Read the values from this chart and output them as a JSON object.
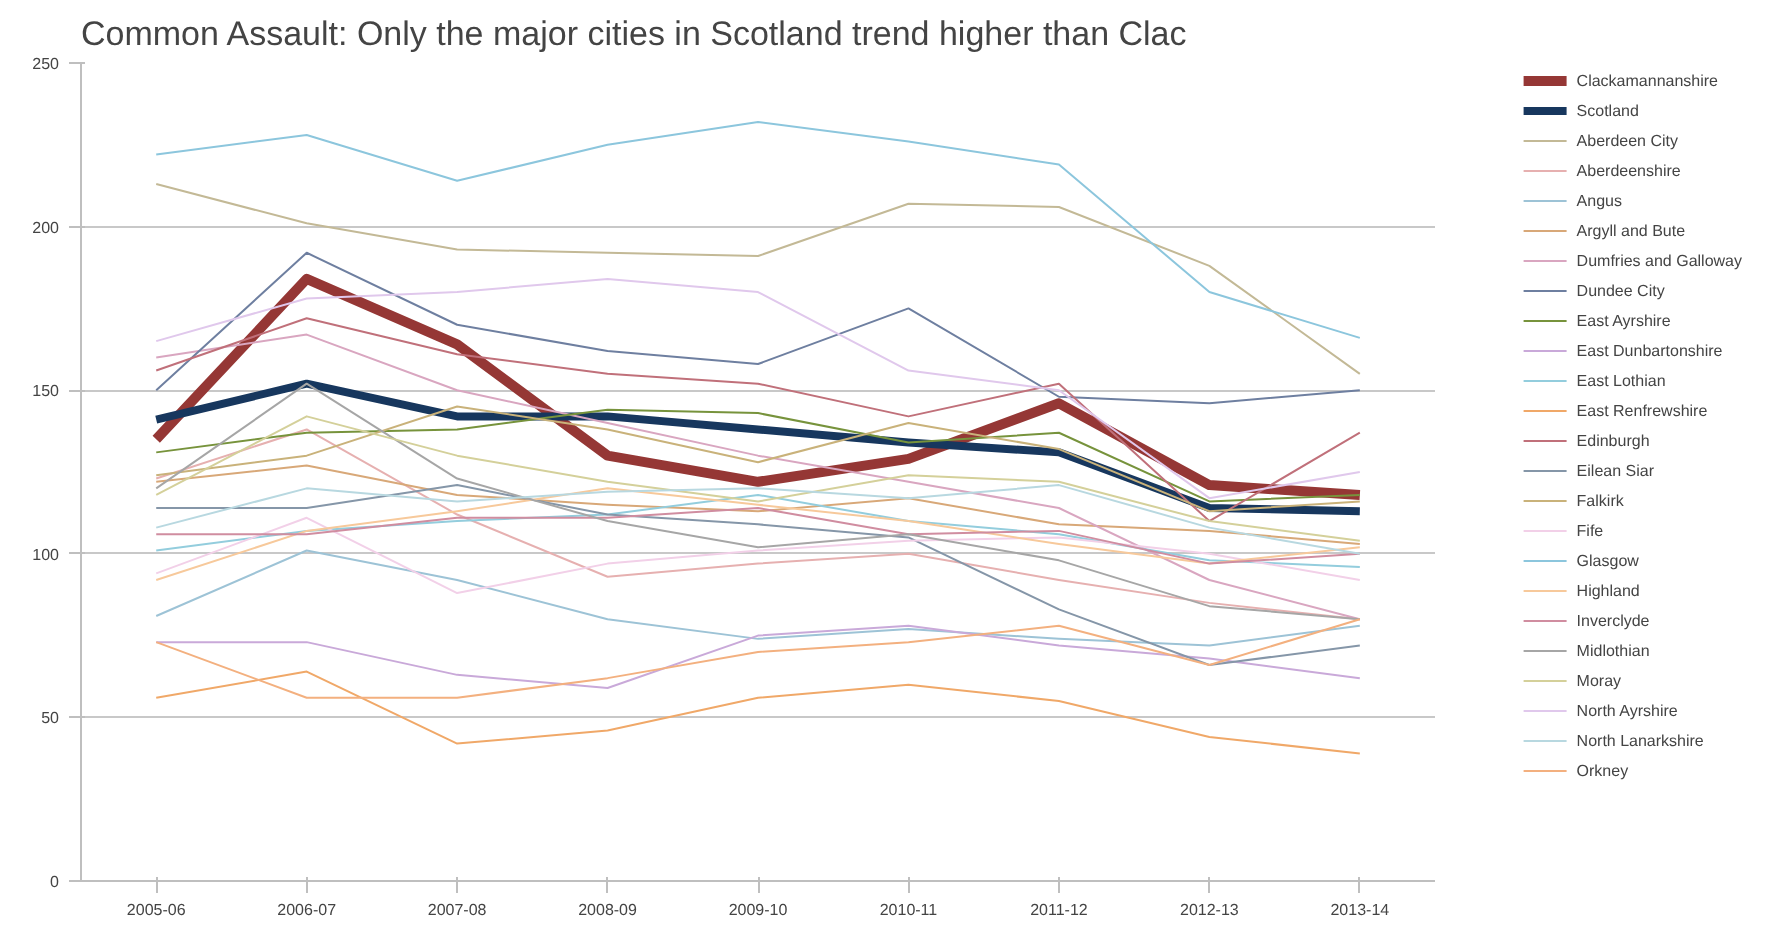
{
  "chart_data": {
    "type": "line",
    "title": "Common Assault: Only the major cities in Scotland trend higher than Clac",
    "categories": [
      "2005-06",
      "2006-07",
      "2007-08",
      "2008-09",
      "2009-10",
      "2010-11",
      "2011-12",
      "2012-13",
      "2013-14"
    ],
    "ylim": [
      0,
      250
    ],
    "yticks": [
      0,
      50,
      100,
      150,
      200,
      250
    ],
    "grid": "y",
    "legend": "right",
    "series": [
      {
        "name": "Clackamannanshire",
        "color": "#953735",
        "values": [
          135,
          184,
          164,
          130,
          122,
          129,
          146,
          121,
          118
        ]
      },
      {
        "name": "Scotland",
        "color": "#17375e",
        "values": [
          141,
          152,
          142,
          142,
          138,
          134,
          131,
          114,
          113
        ]
      },
      {
        "name": "Aberdeen City",
        "color": "#c3b996",
        "values": [
          213,
          201,
          193,
          192,
          191,
          207,
          206,
          188,
          155
        ]
      },
      {
        "name": "Aberdeenshire",
        "color": "#e6b0b0",
        "values": [
          123,
          138,
          112,
          93,
          97,
          100,
          92,
          85,
          80
        ]
      },
      {
        "name": "Angus",
        "color": "#9dc3d6",
        "values": [
          81,
          101,
          92,
          80,
          74,
          77,
          74,
          72,
          78
        ]
      },
      {
        "name": "Argyll and Bute",
        "color": "#d8a878",
        "values": [
          122,
          127,
          118,
          115,
          113,
          117,
          109,
          107,
          103
        ]
      },
      {
        "name": "Dumfries and Galloway",
        "color": "#d9a6c0",
        "values": [
          160,
          167,
          150,
          140,
          130,
          122,
          114,
          92,
          80
        ]
      },
      {
        "name": "Dundee City",
        "color": "#6e7fa0",
        "values": [
          150,
          192,
          170,
          162,
          158,
          175,
          148,
          146,
          150
        ]
      },
      {
        "name": "East Ayrshire",
        "color": "#77933c",
        "values": [
          131,
          137,
          138,
          144,
          143,
          134,
          137,
          116,
          118
        ]
      },
      {
        "name": "East Dunbartonshire",
        "color": "#c9a9d9",
        "values": [
          73,
          73,
          63,
          59,
          75,
          78,
          72,
          68,
          62
        ]
      },
      {
        "name": "East Lothian",
        "color": "#93cddd",
        "values": [
          101,
          107,
          110,
          112,
          118,
          110,
          106,
          98,
          96
        ]
      },
      {
        "name": "East Renfrewshire",
        "color": "#f0a868",
        "values": [
          56,
          64,
          42,
          46,
          56,
          60,
          55,
          44,
          39
        ]
      },
      {
        "name": "Edinburgh",
        "color": "#c0707a",
        "values": [
          156,
          172,
          161,
          155,
          152,
          142,
          152,
          110,
          137
        ]
      },
      {
        "name": "Eilean Siar",
        "color": "#8596a8",
        "values": [
          114,
          114,
          121,
          112,
          109,
          105,
          83,
          66,
          72
        ]
      },
      {
        "name": "Falkirk",
        "color": "#c9b27a",
        "values": [
          124,
          130,
          145,
          138,
          128,
          140,
          132,
          113,
          116
        ]
      },
      {
        "name": "Fife",
        "color": "#f2d0e8",
        "values": [
          94,
          111,
          88,
          97,
          101,
          104,
          105,
          100,
          92
        ]
      },
      {
        "name": "Glasgow",
        "color": "#8cc6dd",
        "values": [
          222,
          228,
          214,
          225,
          232,
          226,
          219,
          180,
          166
        ]
      },
      {
        "name": "Highland",
        "color": "#f7c99b",
        "values": [
          92,
          107,
          113,
          120,
          115,
          110,
          103,
          97,
          102
        ]
      },
      {
        "name": "Inverclyde",
        "color": "#d08da0",
        "values": [
          106,
          106,
          111,
          111,
          114,
          106,
          107,
          97,
          100
        ]
      },
      {
        "name": "Midlothian",
        "color": "#a6a6a6",
        "values": [
          120,
          152,
          123,
          110,
          102,
          106,
          98,
          84,
          80
        ]
      },
      {
        "name": "Moray",
        "color": "#d4d09a",
        "values": [
          118,
          142,
          130,
          122,
          116,
          124,
          122,
          110,
          104
        ]
      },
      {
        "name": "North Ayrshire",
        "color": "#e0c8ec",
        "values": [
          165,
          178,
          180,
          184,
          180,
          156,
          150,
          117,
          125
        ]
      },
      {
        "name": "North Lanarkshire",
        "color": "#b8d8e0",
        "values": [
          108,
          120,
          116,
          119,
          120,
          117,
          121,
          108,
          100
        ]
      },
      {
        "name": "Orkney",
        "color": "#f3b07f",
        "values": [
          73,
          56,
          56,
          62,
          70,
          73,
          78,
          66,
          80
        ]
      }
    ]
  }
}
